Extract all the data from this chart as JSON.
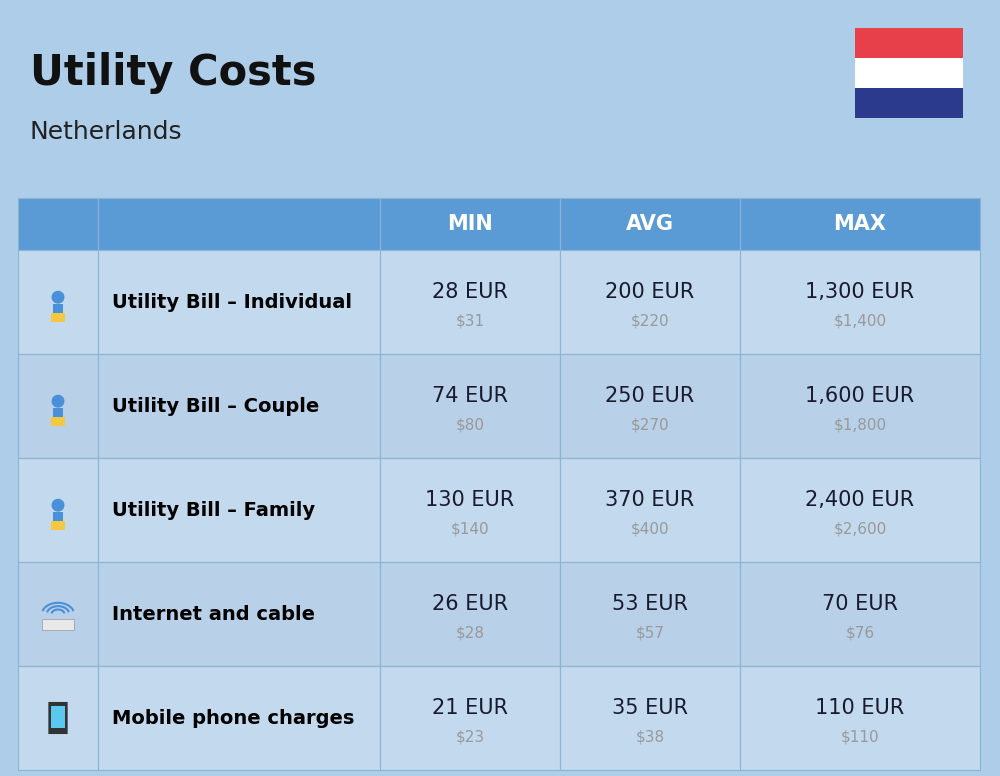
{
  "title": "Utility Costs",
  "subtitle": "Netherlands",
  "bg_color": "#aecde8",
  "header_color": "#5b9bd5",
  "header_text_color": "#ffffff",
  "row_colors": [
    "#c2d9ee",
    "#b8d0e8"
  ],
  "cell_border_color": "#8ab4d4",
  "title_color": "#111111",
  "subtitle_color": "#222222",
  "eur_color": "#1a1a2e",
  "usd_color": "#999999",
  "label_color": "#000000",
  "flag_red": "#e8404a",
  "flag_white": "#ffffff",
  "flag_blue": "#2b3a8c",
  "headers": [
    "MIN",
    "AVG",
    "MAX"
  ],
  "rows": [
    {
      "label": "Utility Bill – Individual",
      "min_eur": "28 EUR",
      "min_usd": "$31",
      "avg_eur": "200 EUR",
      "avg_usd": "$220",
      "max_eur": "1,300 EUR",
      "max_usd": "$1,400"
    },
    {
      "label": "Utility Bill – Couple",
      "min_eur": "74 EUR",
      "min_usd": "$80",
      "avg_eur": "250 EUR",
      "avg_usd": "$270",
      "max_eur": "1,600 EUR",
      "max_usd": "$1,800"
    },
    {
      "label": "Utility Bill – Family",
      "min_eur": "130 EUR",
      "min_usd": "$140",
      "avg_eur": "370 EUR",
      "avg_usd": "$400",
      "max_eur": "2,400 EUR",
      "max_usd": "$2,600"
    },
    {
      "label": "Internet and cable",
      "min_eur": "26 EUR",
      "min_usd": "$28",
      "avg_eur": "53 EUR",
      "avg_usd": "$57",
      "max_eur": "70 EUR",
      "max_usd": "$76"
    },
    {
      "label": "Mobile phone charges",
      "min_eur": "21 EUR",
      "min_usd": "$23",
      "avg_eur": "35 EUR",
      "avg_usd": "$38",
      "max_eur": "110 EUR",
      "max_usd": "$110"
    }
  ],
  "figsize": [
    10.0,
    7.76
  ],
  "dpi": 100
}
